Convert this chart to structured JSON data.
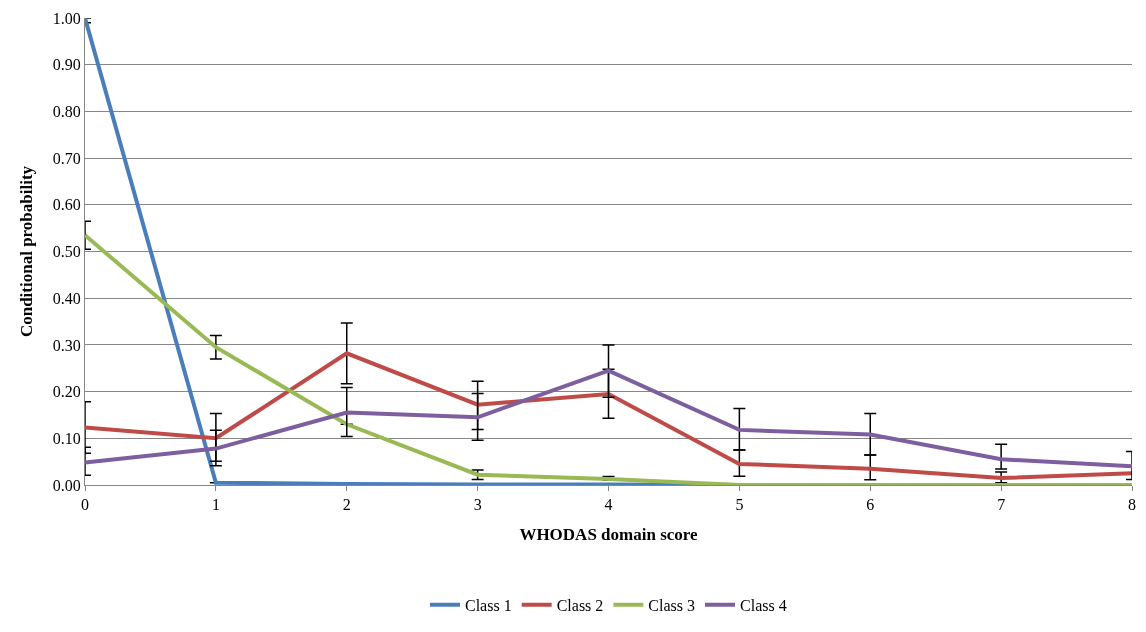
{
  "chart_data": {
    "type": "line",
    "xlabel": "WHODAS domain score",
    "ylabel": "Conditional probability",
    "x": [
      0,
      1,
      2,
      3,
      4,
      5,
      6,
      7,
      8
    ],
    "xlim": [
      0,
      8
    ],
    "xticks": [
      0,
      1,
      2,
      3,
      4,
      5,
      6,
      7,
      8
    ],
    "ylim": [
      0,
      1
    ],
    "yticks": [
      {
        "value": 0,
        "label": "0.00"
      },
      {
        "value": 0.1,
        "label": "0.10"
      },
      {
        "value": 0.2,
        "label": "0.20"
      },
      {
        "value": 0.3,
        "label": "0.30"
      },
      {
        "value": 0.4,
        "label": "0.40"
      },
      {
        "value": 0.5,
        "label": "0.50"
      },
      {
        "value": 0.6,
        "label": "0.60"
      },
      {
        "value": 0.7,
        "label": "0.70"
      },
      {
        "value": 0.8,
        "label": "0.80"
      },
      {
        "value": 0.9,
        "label": "0.90"
      },
      {
        "value": 1,
        "label": "1.00"
      }
    ],
    "grid": "y",
    "legend": "bottom",
    "marker": "none",
    "line_style": "solid",
    "series": [
      {
        "name": "Class 1",
        "color": "#4a7ebb",
        "values": [
          1.0,
          0.005,
          0.002,
          0.001,
          0.001,
          0,
          0,
          null,
          null
        ],
        "errors": [
          [
            0.99,
            1.0
          ],
          null,
          null,
          null,
          null,
          null,
          null,
          null,
          null
        ]
      },
      {
        "name": "Class 2",
        "color": "#be4b48",
        "values": [
          0.123,
          0.1,
          0.282,
          0.172,
          0.195,
          0.045,
          0.035,
          0.015,
          0.025
        ],
        "errors": [
          [
            0.068,
            0.178
          ],
          [
            0.051,
            0.153
          ],
          [
            0.217,
            0.347
          ],
          [
            0.119,
            0.222
          ],
          [
            0.143,
            0.248
          ],
          [
            0.019,
            0.075
          ],
          [
            0.011,
            0.064
          ],
          [
            0.005,
            0.028
          ],
          null
        ]
      },
      {
        "name": "Class 3",
        "color": "#98b954",
        "values": [
          0.535,
          0.295,
          0.13,
          0.022,
          0.013,
          0,
          0,
          0,
          0
        ],
        "errors": [
          [
            0.505,
            0.565
          ],
          [
            0.27,
            0.32
          ],
          null,
          [
            0.012,
            0.032
          ],
          [
            0.01,
            0.018
          ],
          null,
          null,
          null,
          null
        ]
      },
      {
        "name": "Class 4",
        "color": "#7d5fa0",
        "values": [
          0.048,
          0.078,
          0.155,
          0.145,
          0.245,
          0.118,
          0.108,
          0.055,
          0.04
        ],
        "errors": [
          [
            0.021,
            0.081
          ],
          [
            0.041,
            0.117
          ],
          [
            0.104,
            0.209
          ],
          [
            0.096,
            0.196
          ],
          [
            0.188,
            0.3
          ],
          [
            0.075,
            0.164
          ],
          [
            0.064,
            0.153
          ],
          [
            0.034,
            0.087
          ],
          [
            0.012,
            0.072
          ]
        ]
      }
    ]
  }
}
